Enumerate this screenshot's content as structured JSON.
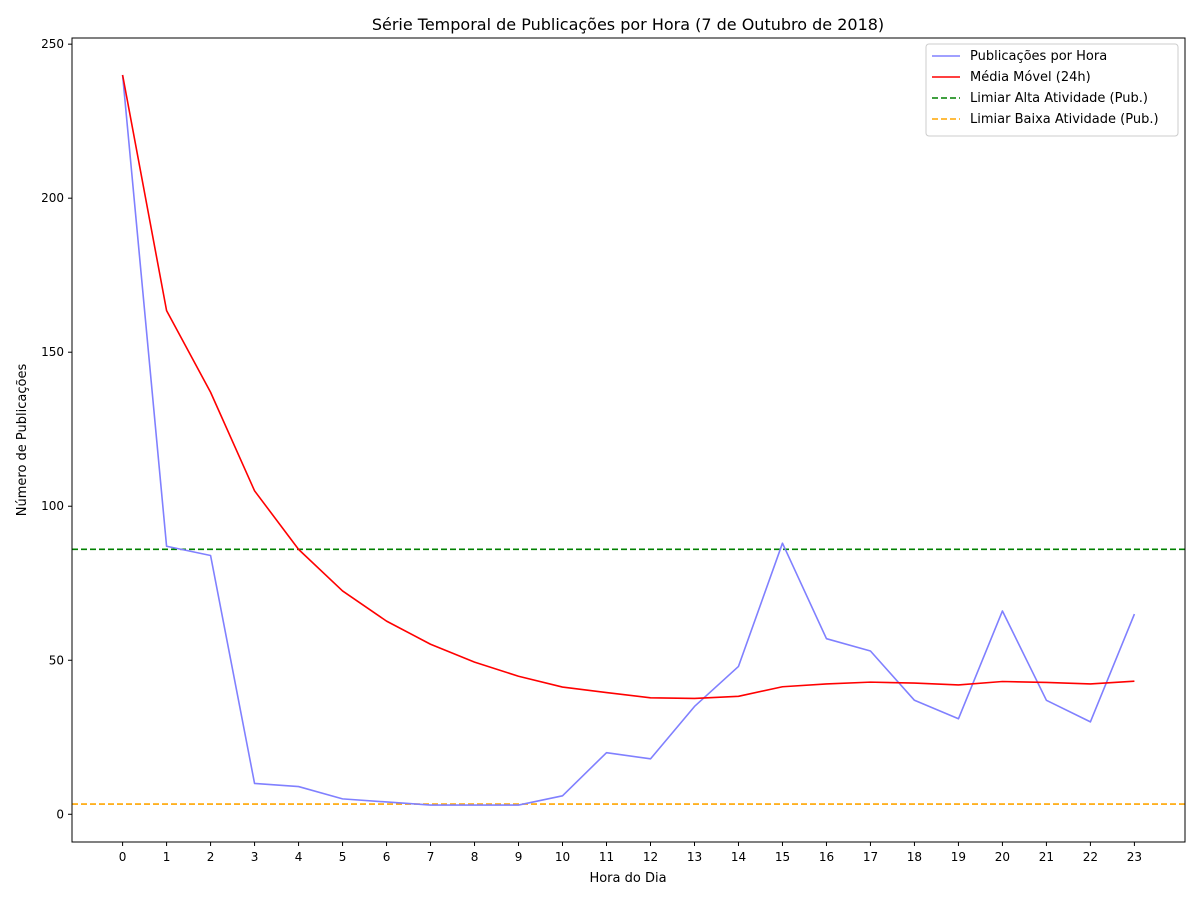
{
  "chart_data": {
    "type": "line",
    "title": "Série Temporal de Publicações por Hora (7 de Outubro de 2018)",
    "xlabel": "Hora do Dia",
    "ylabel": "Número de Publicações",
    "x": [
      0,
      1,
      2,
      3,
      4,
      5,
      6,
      7,
      8,
      9,
      10,
      11,
      12,
      13,
      14,
      15,
      16,
      17,
      18,
      19,
      20,
      21,
      22,
      23
    ],
    "xlim": [
      -1.15,
      24.15
    ],
    "ylim": [
      -9,
      252
    ],
    "yticks": [
      0,
      50,
      100,
      150,
      200,
      250
    ],
    "grid": false,
    "legend_position": "top-right",
    "series": [
      {
        "name": "Publicações por Hora",
        "color": "#8080ff",
        "style": "solid",
        "values": [
          240,
          87,
          84,
          10,
          9,
          5,
          4,
          3,
          3,
          3,
          6,
          20,
          18,
          35,
          48,
          88,
          57,
          53,
          37,
          31,
          66,
          37,
          30,
          65
        ]
      },
      {
        "name": "Média Móvel (24h)",
        "color": "#ff0000",
        "style": "solid",
        "values": [
          240,
          163.5,
          137,
          105,
          86,
          72.5,
          62.7,
          55.2,
          49.4,
          44.8,
          41.3,
          39.5,
          37.8,
          37.6,
          38.3,
          41.4,
          42.3,
          42.9,
          42.6,
          42.0,
          43.1,
          42.8,
          42.3,
          43.2
        ]
      }
    ],
    "hlines": [
      {
        "name": "Limiar Alta Atividade (Pub.)",
        "y": 86,
        "color": "#008000",
        "style": "dashed"
      },
      {
        "name": "Limiar Baixa Atividade (Pub.)",
        "y": 3.3,
        "color": "#ffa500",
        "style": "dashed"
      }
    ]
  }
}
